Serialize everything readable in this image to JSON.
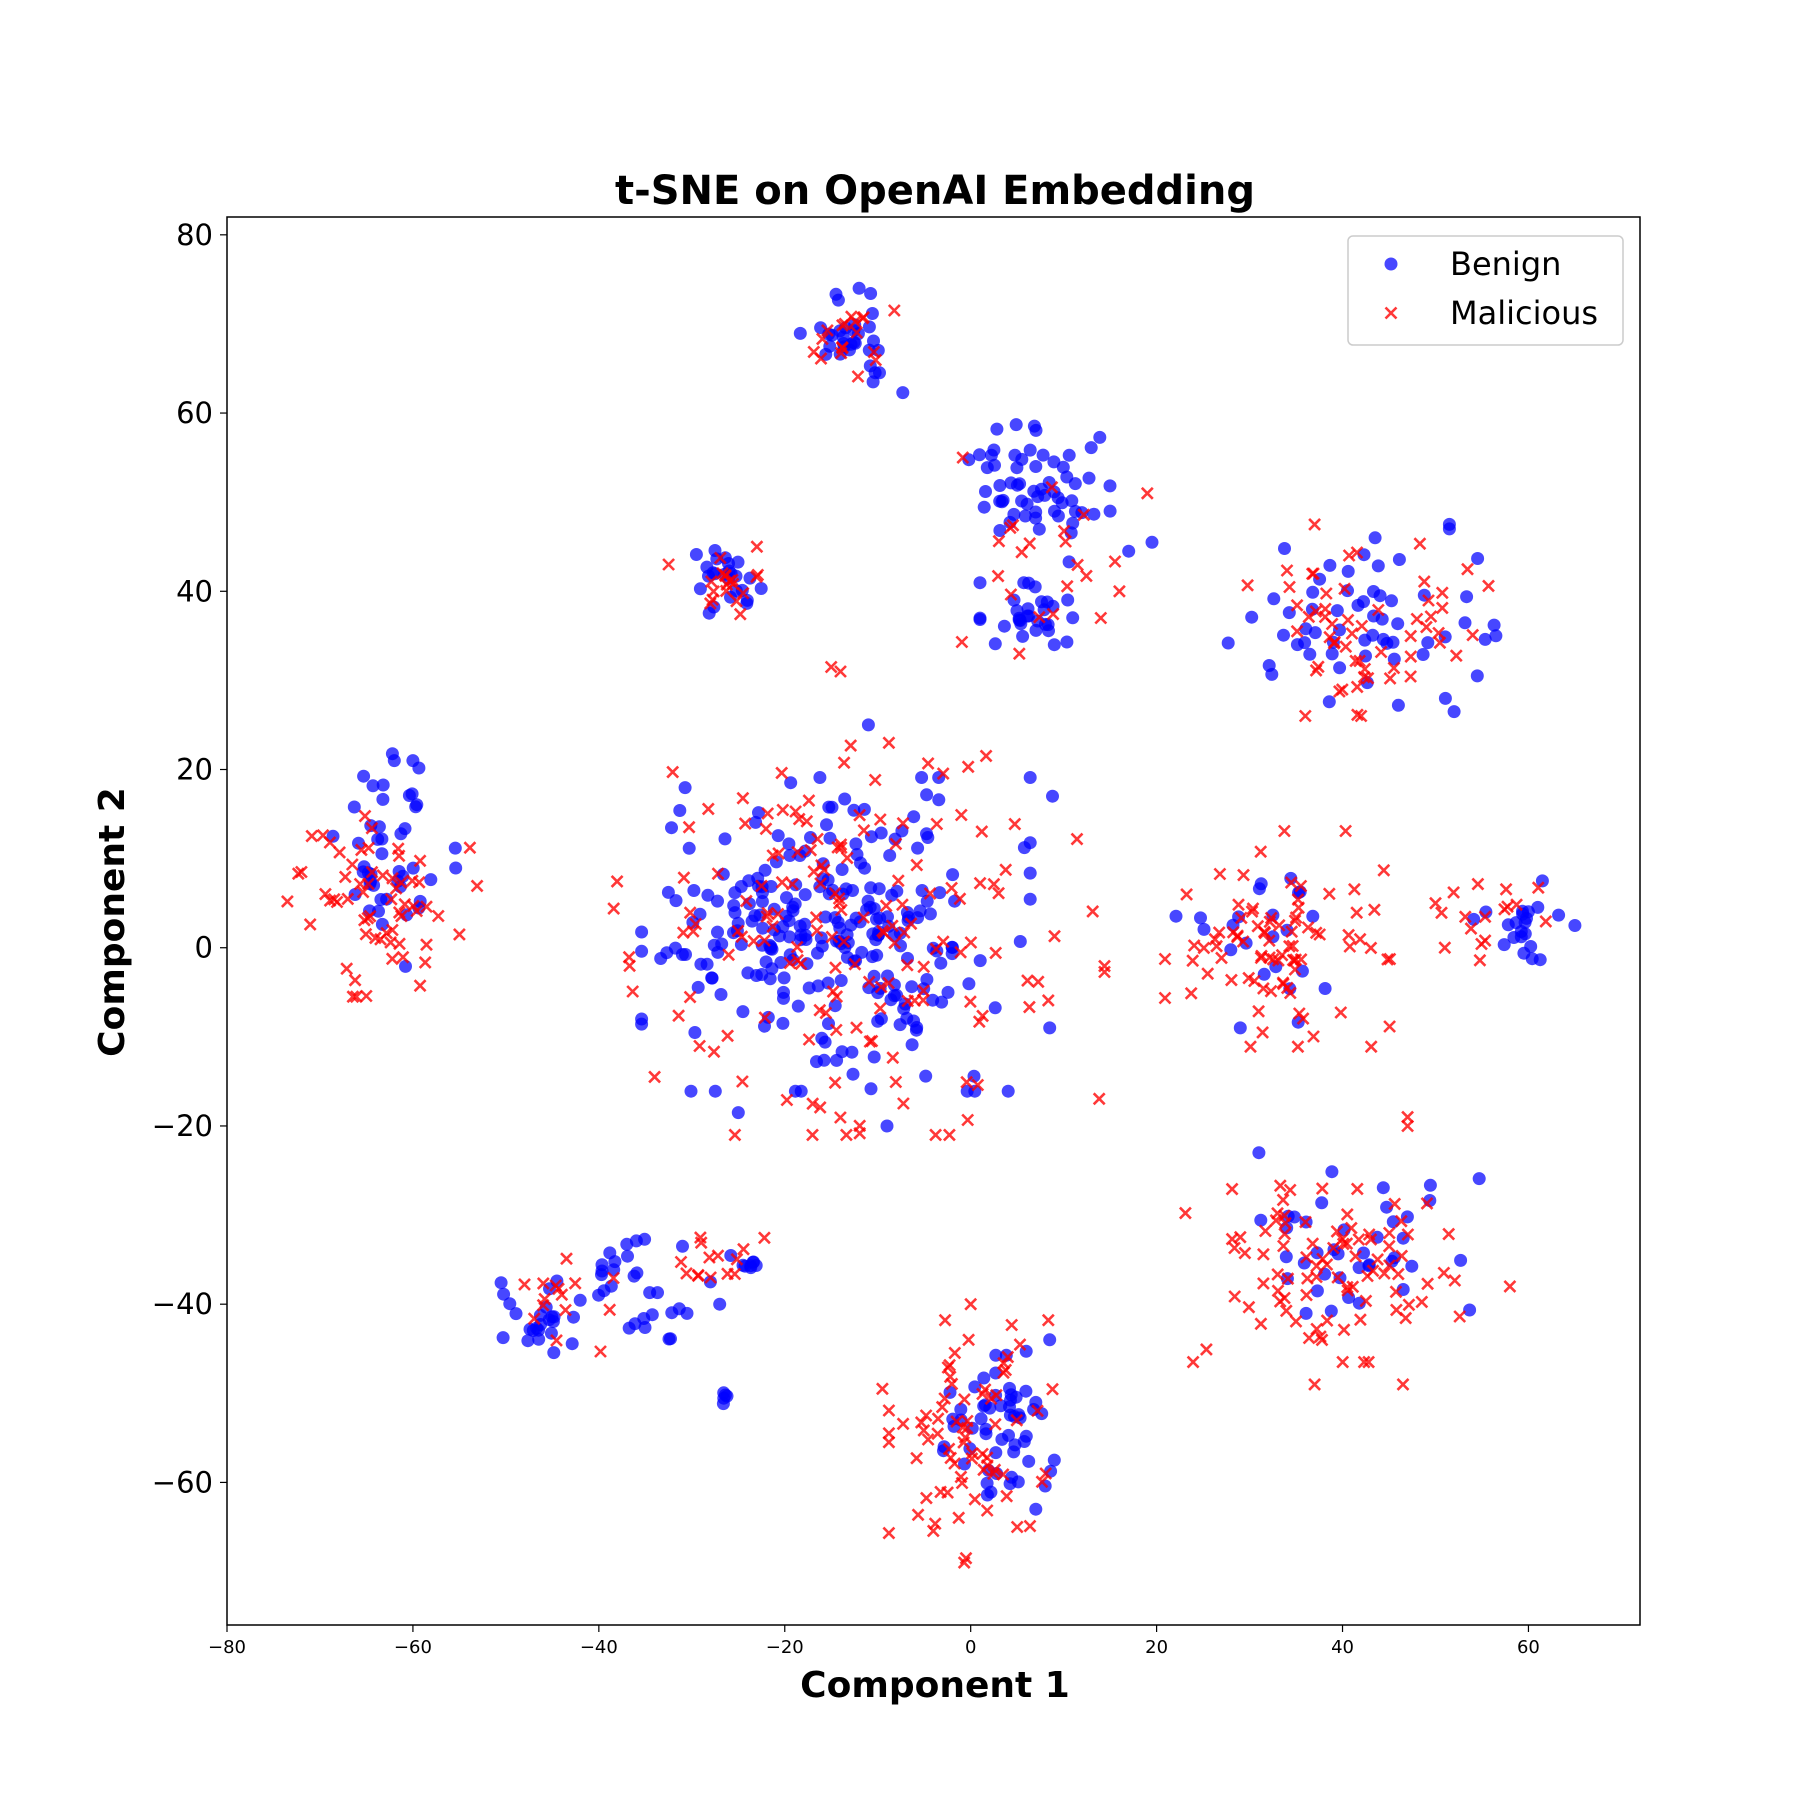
{
  "chart_data": {
    "type": "scatter",
    "title": "t-SNE on OpenAI Embedding",
    "xlabel": "Component 1",
    "ylabel": "Component 2",
    "xlim": [
      -80,
      72
    ],
    "ylim": [
      -76,
      82
    ],
    "xticks": [
      -80,
      -60,
      -40,
      -20,
      0,
      20,
      40,
      60
    ],
    "yticks": [
      -60,
      -40,
      -20,
      0,
      20,
      40,
      60,
      80
    ],
    "xtick_labels": [
      "−80",
      "−60",
      "−40",
      "−20",
      "0",
      "20",
      "40",
      "60"
    ],
    "ytick_labels": [
      "−60",
      "−40",
      "−20",
      "0",
      "20",
      "40",
      "60",
      "80"
    ],
    "grid": false,
    "legend_position": "top-right",
    "series": [
      {
        "name": "Benign",
        "marker": "circle",
        "color": "#0000ff",
        "clusters": [
          {
            "center": [
              -13,
              69.5
            ],
            "spread": [
              2.5,
              2.5
            ],
            "count": 30,
            "extra": [
              [
                -10.5,
                63.5
              ],
              [
                -7.3,
                62.3
              ],
              [
                -12,
                74
              ]
            ]
          },
          {
            "center": [
              7.5,
              51
            ],
            "spread": [
              3.5,
              3.5
            ],
            "count": 60,
            "extra": [
              [
                15,
                49
              ],
              [
                19.5,
                45.5
              ],
              [
                17,
                44.5
              ]
            ]
          },
          {
            "center": [
              6.5,
              37
            ],
            "spread": [
              2.5,
              1.8
            ],
            "count": 30,
            "extra": [
              [
                9,
                34
              ]
            ]
          },
          {
            "center": [
              -26.5,
              41.5
            ],
            "spread": [
              1.8,
              1.8
            ],
            "count": 25,
            "extra": []
          },
          {
            "center": [
              42,
              36
            ],
            "spread": [
              6.5,
              4
            ],
            "count": 55,
            "extra": [
              [
                51.5,
                47.5
              ],
              [
                51.5,
                47
              ],
              [
                43.5,
                46
              ],
              [
                52,
                26.5
              ],
              [
                54.5,
                30.5
              ],
              [
                56.5,
                35
              ]
            ]
          },
          {
            "center": [
              -62,
              10
            ],
            "spread": [
              3,
              5.5
            ],
            "count": 45,
            "extra": [
              [
                -62,
                21
              ],
              [
                -60,
                21
              ]
            ]
          },
          {
            "center": [
              -14.5,
              1.5
            ],
            "spread": [
              9.5,
              8
            ],
            "count": 260,
            "extra": [
              [
                -9,
                -20
              ],
              [
                -25,
                -18.5
              ],
              [
                8.5,
                -9
              ],
              [
                8.8,
                17
              ],
              [
                -11,
                25
              ]
            ]
          },
          {
            "center": [
              30.5,
              1
            ],
            "spread": [
              4.5,
              5
            ],
            "count": 22,
            "extra": [
              [
                29,
                -9
              ]
            ]
          },
          {
            "center": [
              59.5,
              2
            ],
            "spread": [
              2.5,
              2
            ],
            "count": 20,
            "extra": [
              [
                65,
                2.5
              ],
              [
                61.5,
                7.5
              ]
            ]
          },
          {
            "center": [
              41.5,
              -33.5
            ],
            "spread": [
              6,
              4
            ],
            "count": 40,
            "extra": [
              [
                31,
                -23
              ]
            ]
          },
          {
            "center": [
              -46.5,
              -42
            ],
            "spread": [
              2.5,
              2.5
            ],
            "count": 25,
            "extra": []
          },
          {
            "center": [
              -38.5,
              -36.5
            ],
            "spread": [
              2,
              2
            ],
            "count": 15,
            "extra": []
          },
          {
            "center": [
              -33,
              -42
            ],
            "spread": [
              2.5,
              1.5
            ],
            "count": 12,
            "extra": [
              [
                -31,
                -33.5
              ]
            ]
          },
          {
            "center": [
              -26.5,
              -50.5
            ],
            "spread": [
              0.3,
              0.3
            ],
            "count": 5,
            "extra": [
              [
                -28,
                -37.5
              ],
              [
                -27,
                -40
              ]
            ]
          },
          {
            "center": [
              -23.5,
              -35.5
            ],
            "spread": [
              1.5,
              1
            ],
            "count": 8,
            "extra": []
          },
          {
            "center": [
              2,
              -54
            ],
            "spread": [
              3,
              4.5
            ],
            "count": 55,
            "extra": [
              [
                8.5,
                -44
              ],
              [
                9,
                -57.5
              ],
              [
                7,
                -63
              ]
            ]
          }
        ]
      },
      {
        "name": "Malicious",
        "marker": "x",
        "color": "#ff0000",
        "clusters": [
          {
            "center": [
              -13,
              68.5
            ],
            "spread": [
              2.5,
              2
            ],
            "count": 18,
            "extra": []
          },
          {
            "center": [
              7,
              44
            ],
            "spread": [
              4,
              5
            ],
            "count": 20,
            "extra": [
              [
                19,
                51
              ],
              [
                16,
                40
              ],
              [
                14,
                37
              ]
            ]
          },
          {
            "center": [
              -26.5,
              41.5
            ],
            "spread": [
              2,
              2
            ],
            "count": 18,
            "extra": [
              [
                -32.5,
                43
              ],
              [
                -23,
                45
              ]
            ]
          },
          {
            "center": [
              42.5,
              36.5
            ],
            "spread": [
              6,
              5
            ],
            "count": 55,
            "extra": [
              [
                37,
                47.5
              ],
              [
                36,
                26
              ],
              [
                42,
                26
              ]
            ]
          },
          {
            "center": [
              -63,
              5.5
            ],
            "spread": [
              4.5,
              5
            ],
            "count": 60,
            "extra": [
              [
                -73.5,
                5.2
              ],
              [
                -72,
                8.5
              ],
              [
                -55,
                1.5
              ]
            ]
          },
          {
            "center": [
              -12,
              1
            ],
            "spread": [
              12,
              10
            ],
            "count": 160,
            "extra": [
              [
                -15,
                31.5
              ],
              [
                -14,
                31
              ],
              [
                -34,
                -14.5
              ],
              [
                -17,
                -17.5
              ]
            ]
          },
          {
            "center": [
              33,
              1
            ],
            "spread": [
              5.5,
              5.5
            ],
            "count": 85,
            "extra": [
              [
                50,
                5
              ],
              [
                51,
                0
              ]
            ]
          },
          {
            "center": [
              57,
              3
            ],
            "spread": [
              3,
              2.5
            ],
            "count": 15,
            "extra": []
          },
          {
            "center": [
              38.5,
              -35.5
            ],
            "spread": [
              7,
              5
            ],
            "count": 90,
            "extra": [
              [
                47,
                -19
              ],
              [
                47,
                -20
              ],
              [
                58,
                -38
              ],
              [
                46.5,
                -49
              ],
              [
                37,
                -49
              ]
            ]
          },
          {
            "center": [
              -42.5,
              -39.5
            ],
            "spread": [
              2.5,
              3.5
            ],
            "count": 15,
            "extra": []
          },
          {
            "center": [
              -28,
              -35
            ],
            "spread": [
              3.5,
              1.8
            ],
            "count": 14,
            "extra": []
          },
          {
            "center": [
              0,
              -55
            ],
            "spread": [
              4,
              6
            ],
            "count": 70,
            "extra": [
              [
                -0.5,
                -68.5
              ],
              [
                -0.7,
                -69
              ],
              [
                5,
                -65
              ],
              [
                -9.5,
                -49.5
              ],
              [
                0,
                -40
              ]
            ]
          }
        ]
      }
    ]
  }
}
